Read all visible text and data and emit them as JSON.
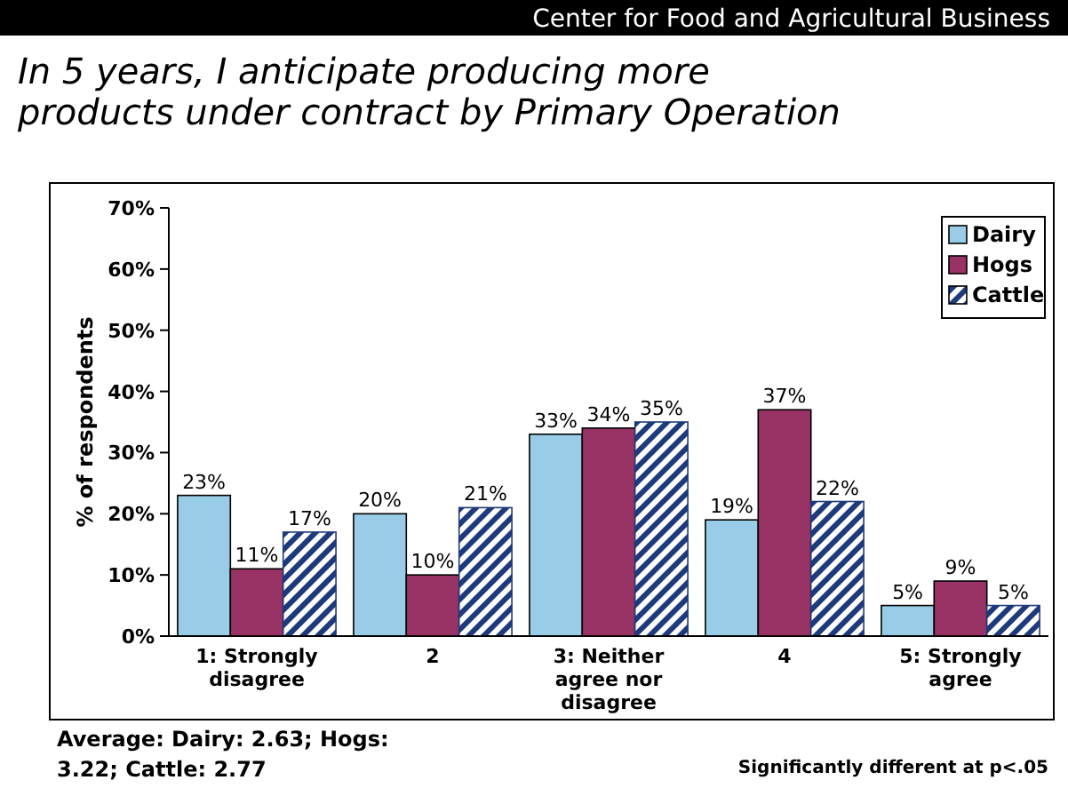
{
  "chart_data": {
    "type": "bar",
    "title": "In 5 years, I anticipate producing more products under contract by Primary Operation",
    "ylabel": "% of respondents",
    "categories": [
      "1:  Strongly disagree",
      "2",
      "3:  Neither agree nor disagree",
      "4",
      "5:  Strongly agree"
    ],
    "series": [
      {
        "name": "Dairy",
        "color": "#99cce6",
        "values": [
          23,
          20,
          33,
          19,
          5
        ],
        "value_labels": [
          "23%",
          "20%",
          "33%",
          "19%",
          "5%"
        ]
      },
      {
        "name": "Hogs",
        "color": "#993366",
        "values": [
          11,
          10,
          34,
          37,
          9
        ],
        "value_labels": [
          "11%",
          "10%",
          "34%",
          "37%",
          "9%"
        ]
      },
      {
        "name": "Cattle",
        "color": "#1f3a7a",
        "values": [
          17,
          21,
          35,
          22,
          5
        ],
        "value_labels": [
          "17%",
          "21%",
          "35%",
          "22%",
          "5%"
        ]
      }
    ],
    "ylim": [
      0,
      70
    ],
    "yticks": [
      {
        "value": 0,
        "label": "0%"
      },
      {
        "value": 10,
        "label": "10%"
      },
      {
        "value": 20,
        "label": "20%"
      },
      {
        "value": 30,
        "label": "30%"
      },
      {
        "value": 40,
        "label": "40%"
      },
      {
        "value": 50,
        "label": "50%"
      },
      {
        "value": 60,
        "label": "60%"
      },
      {
        "value": 70,
        "label": "70%"
      }
    ],
    "grid": false,
    "legend": "top right",
    "annotations": [
      "Center for Food and Agricultural Business",
      "Average:  Dairy: 2.63; Hogs: 3.22; Cattle: 2.77",
      "Significantly different at p<.05"
    ]
  }
}
